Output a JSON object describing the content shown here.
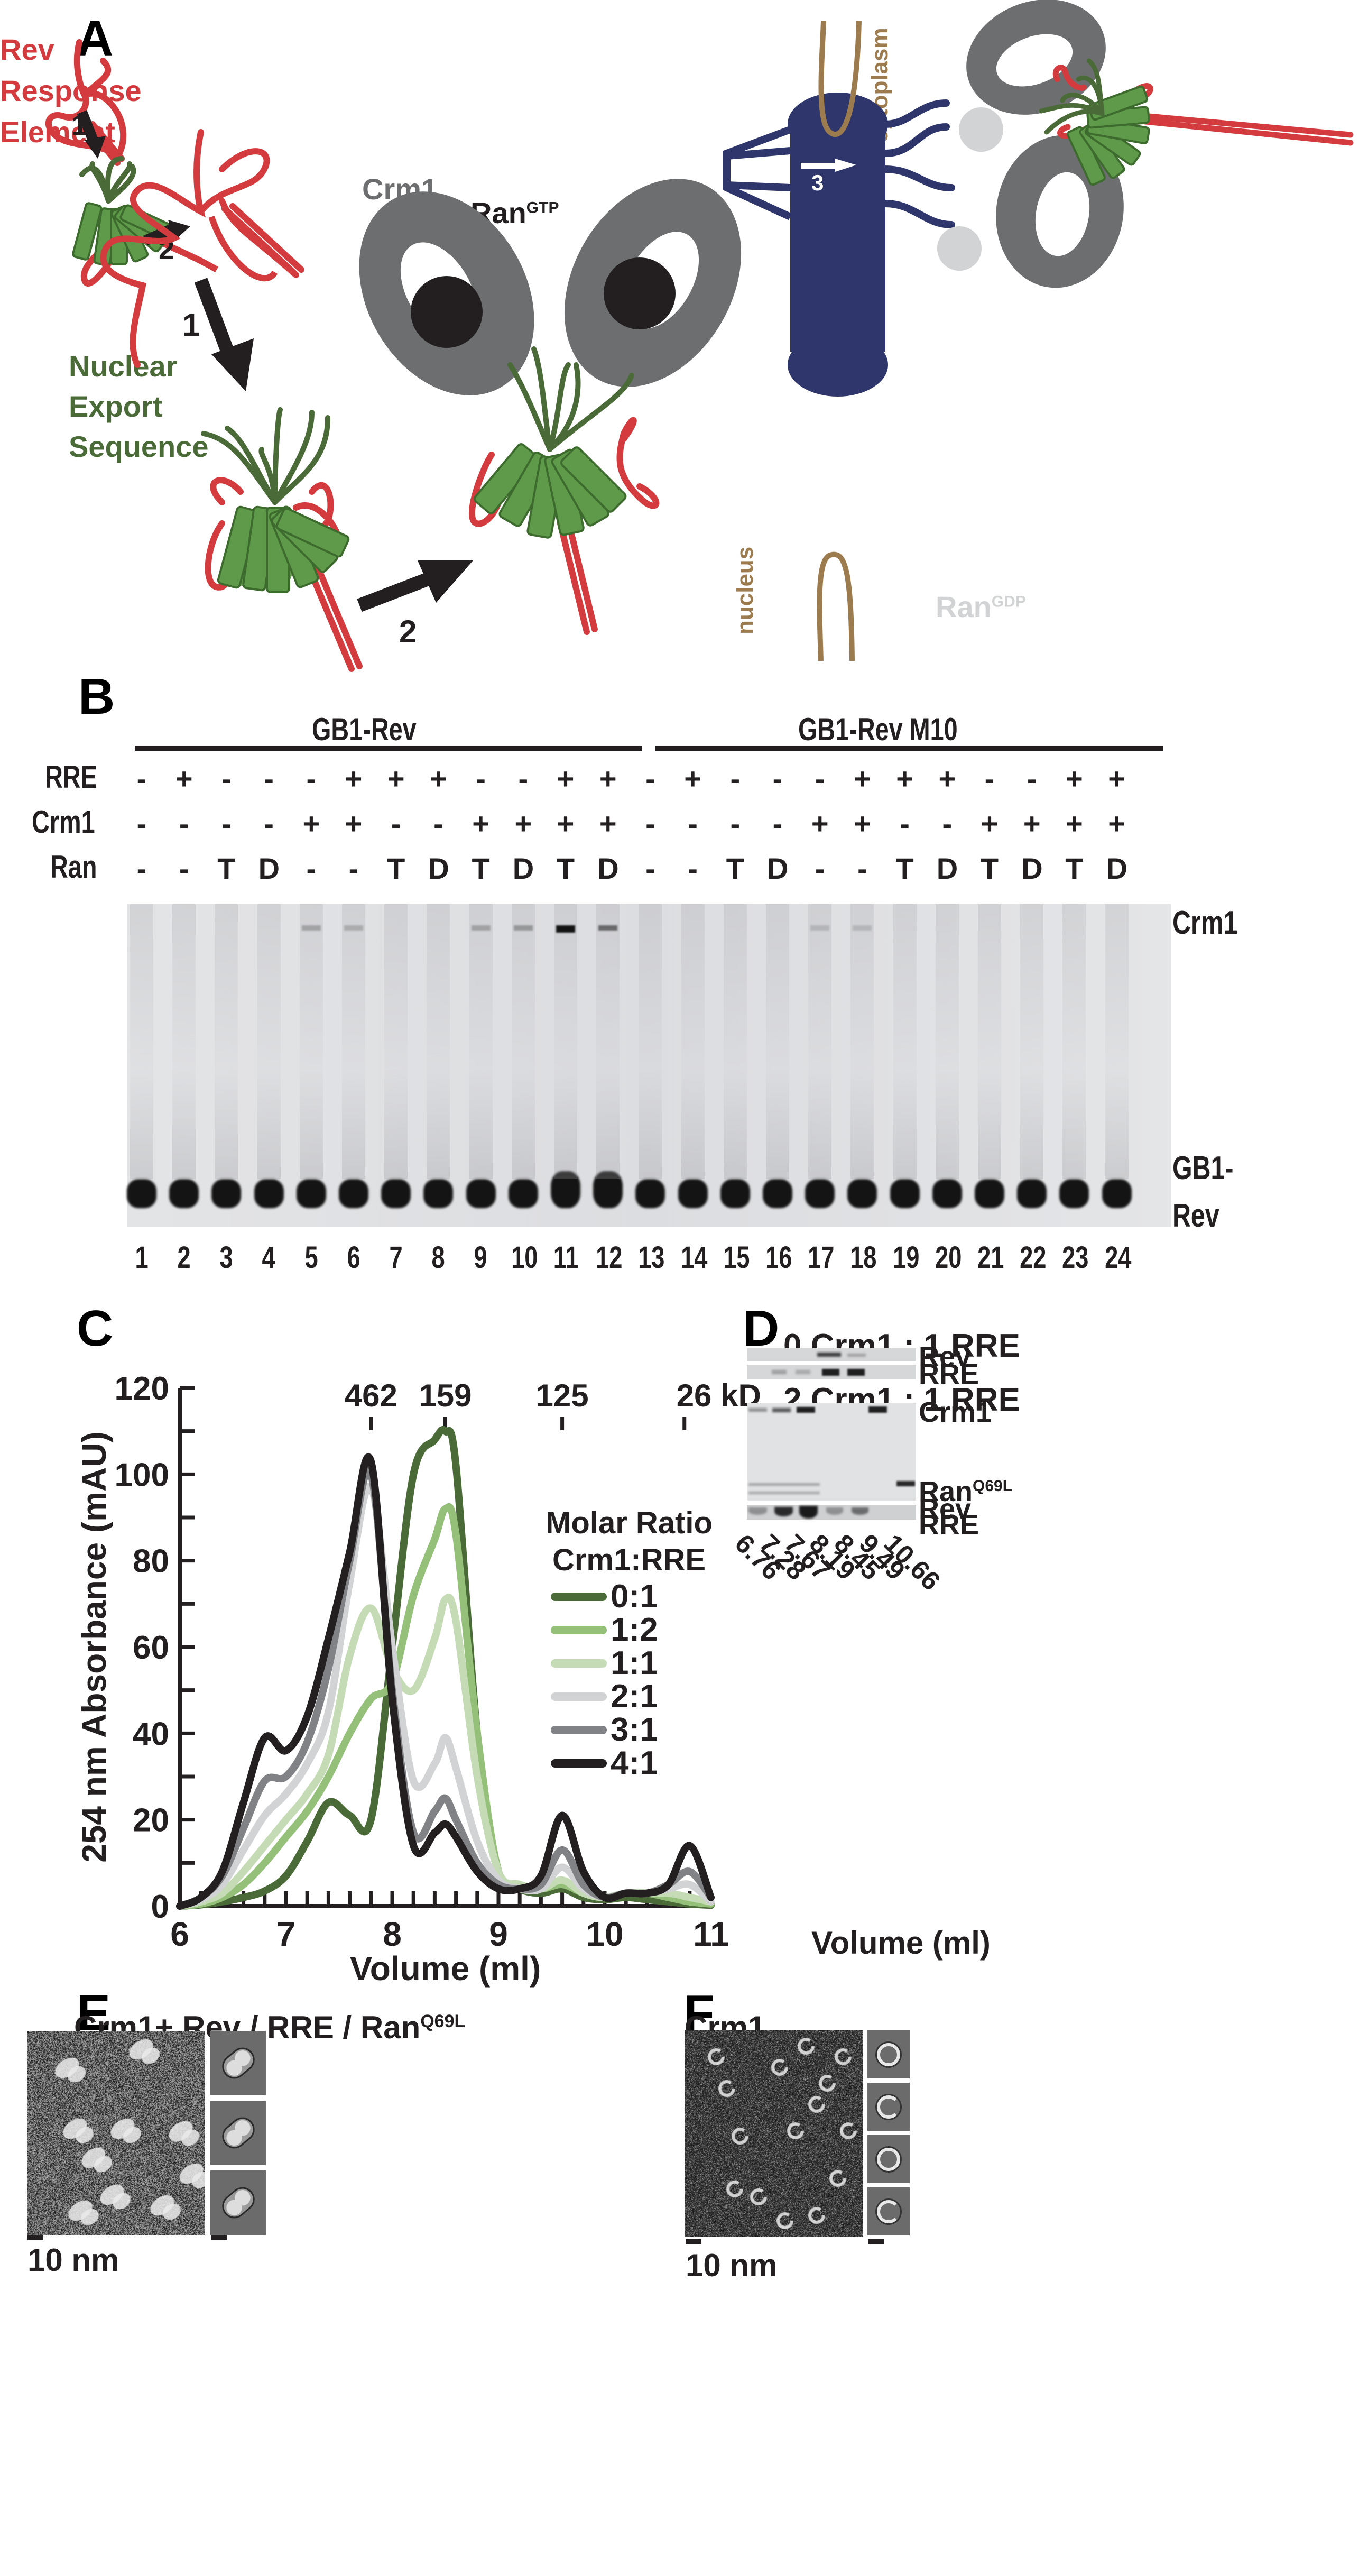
{
  "figure": {
    "panels": {
      "A": {
        "letter": "A",
        "labels": {
          "rre_line1": "Rev",
          "rre_line2": "Response",
          "rre_line3": "Element",
          "nes_line1": "Nuclear",
          "nes_line2": "Export",
          "nes_line3": "Sequence",
          "rev": "Rev",
          "crm1": "Crm1",
          "ran_gtp_base": "Ran",
          "ran_gtp_sup": "GTP",
          "ran_gdp_base": "Ran",
          "ran_gdp_sup": "GDP",
          "cytoplasm": "cytoplasm",
          "nucleus": "nucleus",
          "step1": "1",
          "step2": "2",
          "step3": "3"
        },
        "colors": {
          "rre_red": "#d33b3e",
          "nes_green": "#4a6b38",
          "rev_green": "#5e9a4a",
          "crm1_gray": "#6d6e70",
          "ran_gtp_black": "#231f20",
          "ran_gdp_gray": "#d1d3d4",
          "npc_blue": "#2e366b",
          "membrane_tan": "#9c7b4f"
        }
      },
      "B": {
        "letter": "B",
        "groups": [
          {
            "label": "GB1-Rev",
            "lanes": "1-12"
          },
          {
            "label": "GB1-Rev M10",
            "lanes": "13-24"
          }
        ],
        "rows": [
          {
            "name": "RRE",
            "values": [
              "-",
              "+",
              "-",
              "-",
              "-",
              "+",
              "+",
              "+",
              "-",
              "-",
              "+",
              "+",
              "-",
              "+",
              "-",
              "-",
              "-",
              "+",
              "+",
              "+",
              "-",
              "-",
              "+",
              "+"
            ]
          },
          {
            "name": "Crm1",
            "values": [
              "-",
              "-",
              "-",
              "-",
              "+",
              "+",
              "-",
              "-",
              "+",
              "+",
              "+",
              "+",
              "-",
              "-",
              "-",
              "-",
              "+",
              "+",
              "-",
              "-",
              "+",
              "+",
              "+",
              "+"
            ]
          },
          {
            "name": "Ran",
            "values": [
              "-",
              "-",
              "T",
              "D",
              "-",
              "-",
              "T",
              "D",
              "T",
              "D",
              "T",
              "D",
              "-",
              "-",
              "T",
              "D",
              "-",
              "-",
              "T",
              "D",
              "T",
              "D",
              "T",
              "D"
            ]
          }
        ],
        "side_labels": {
          "top": "Crm1",
          "bottom_line1": "GB1-",
          "bottom_line2": "Rev"
        },
        "lane_numbers": [
          "1",
          "2",
          "3",
          "4",
          "5",
          "6",
          "7",
          "8",
          "9",
          "10",
          "11",
          "12",
          "13",
          "14",
          "15",
          "16",
          "17",
          "18",
          "19",
          "20",
          "21",
          "22",
          "23",
          "24"
        ]
      },
      "C": {
        "letter": "C",
        "legend_title_line1": "Molar Ratio",
        "legend_title_line2": "Crm1:RRE"
      },
      "D": {
        "letter": "D",
        "gel1_title": "0 Crm1 : 1 RRE",
        "gel2_title": "2 Crm1 : 1 RRE",
        "gel1_labels": [
          "Rev",
          "RRE"
        ],
        "gel2_labels": {
          "crm1": "Crm1",
          "ran_base": "Ran",
          "ran_sup": "Q69L",
          "rev": "Rev",
          "rre": "RRE"
        },
        "fractions": [
          "6.76",
          "7.28",
          "7.67",
          "8.19",
          "8.45",
          "9.49",
          "10.66"
        ],
        "xlabel": "Volume (ml)"
      },
      "E": {
        "letter": "E",
        "title_base": "Crm1+ Rev / RRE / Ran",
        "title_sup": "Q69L",
        "scale_label": "10 nm",
        "class_average_count": 3
      },
      "F": {
        "letter": "F",
        "title": "Crm1",
        "scale_label": "10 nm",
        "class_average_count": 4
      }
    }
  },
  "chart_data": {
    "type": "line",
    "title": "",
    "xlabel": "Volume (ml)",
    "ylabel": "254 nm Absorbance (mAU)",
    "xlim": [
      6,
      11
    ],
    "ylim": [
      0,
      120
    ],
    "x_ticks": [
      "6",
      "7",
      "8",
      "9",
      "10",
      "11"
    ],
    "y_ticks": [
      "0",
      "20",
      "40",
      "60",
      "80",
      "100",
      "120"
    ],
    "grid": false,
    "legend_position": "right",
    "legend_title": "Molar Ratio Crm1:RRE",
    "top_axis_markers": [
      {
        "label": "462",
        "x": 7.8
      },
      {
        "label": "159",
        "x": 8.5
      },
      {
        "label": "125",
        "x": 9.6
      },
      {
        "label": "26 kD",
        "x": 10.75
      }
    ],
    "x": [
      6.0,
      6.2,
      6.4,
      6.6,
      6.8,
      7.0,
      7.2,
      7.4,
      7.6,
      7.8,
      8.0,
      8.2,
      8.4,
      8.5,
      8.6,
      8.8,
      9.0,
      9.2,
      9.4,
      9.6,
      9.8,
      10.0,
      10.2,
      10.4,
      10.6,
      10.8,
      11.0
    ],
    "series": [
      {
        "name": "0:1",
        "color": "#4a6b38",
        "values": [
          0,
          0.3,
          1,
          2,
          3.5,
          7,
          15,
          24,
          21,
          20,
          60,
          100,
          108,
          110,
          102,
          40,
          8,
          4,
          3,
          4,
          2,
          1.5,
          2,
          1.5,
          1,
          0.5,
          0.2
        ]
      },
      {
        "name": "1:2",
        "color": "#95c07a",
        "values": [
          0,
          0.5,
          2,
          5,
          10,
          16,
          22,
          30,
          40,
          48,
          52,
          72,
          85,
          92,
          86,
          40,
          8,
          5,
          4,
          5,
          3,
          2,
          3,
          3,
          2,
          1,
          0.5
        ]
      },
      {
        "name": "1:1",
        "color": "#c5dbb5",
        "values": [
          0,
          1,
          3,
          8,
          14,
          20,
          26,
          35,
          58,
          69,
          55,
          50,
          62,
          71,
          66,
          30,
          8,
          5,
          4,
          6,
          3,
          2,
          3,
          3,
          3,
          2,
          1
        ]
      },
      {
        "name": "2:1",
        "color": "#d1d3d4",
        "values": [
          0,
          1.5,
          5,
          13,
          21,
          26,
          33,
          45,
          75,
          97,
          60,
          29,
          33,
          39,
          32,
          15,
          6,
          4,
          4,
          9,
          4,
          2,
          3,
          3,
          4,
          5,
          1
        ]
      },
      {
        "name": "3:1",
        "color": "#808285",
        "values": [
          0,
          2,
          7,
          18,
          29,
          30,
          38,
          55,
          80,
          100,
          50,
          17,
          22,
          25,
          20,
          10,
          5,
          4,
          5,
          13,
          5,
          2,
          3,
          3,
          5,
          8,
          2
        ]
      },
      {
        "name": "4:1",
        "color": "#231f20",
        "values": [
          0,
          2,
          8,
          24,
          39,
          36,
          44,
          62,
          82,
          103,
          48,
          14,
          17,
          19,
          16,
          8,
          4,
          4,
          7,
          21,
          8,
          2,
          3,
          3,
          5,
          14,
          2
        ]
      }
    ]
  }
}
